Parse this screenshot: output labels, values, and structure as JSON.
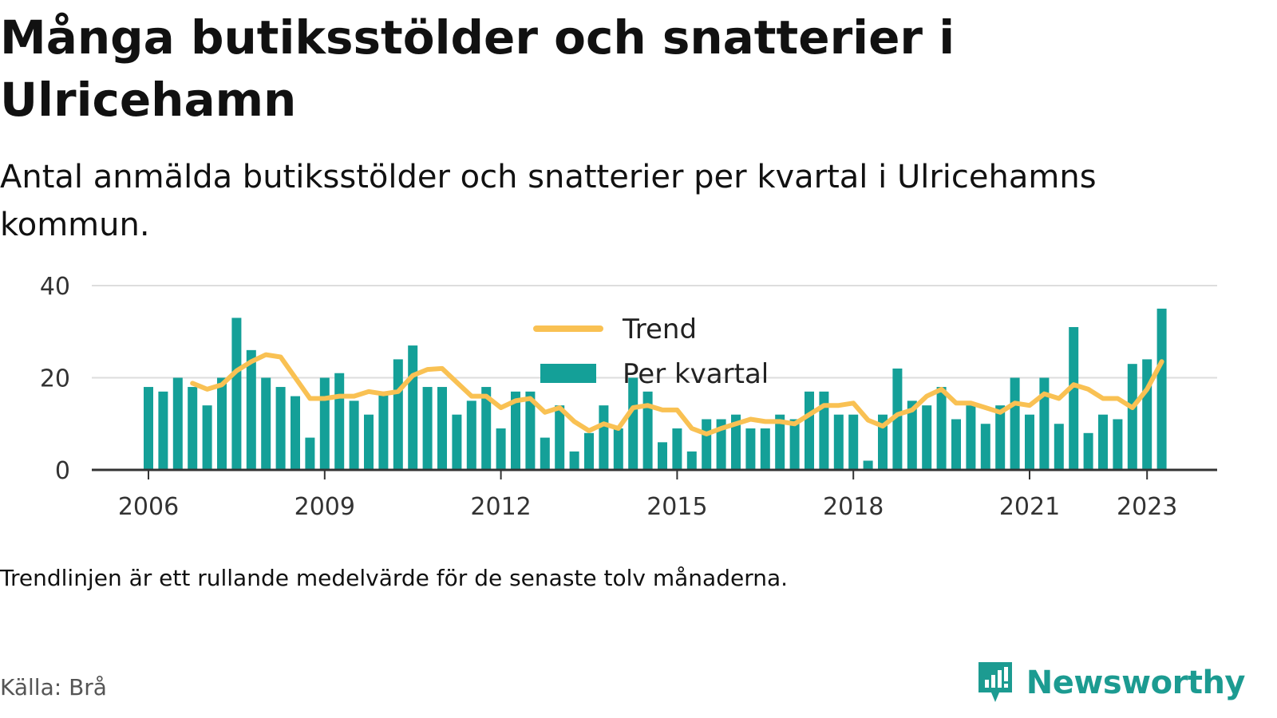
{
  "header": {
    "title": "Många butiksstölder och snatterier i Ulricehamn",
    "subtitle": "Antal anmälda butiksstölder och snatterier per kvartal i Ulricehamns kommun."
  },
  "footer": {
    "note": "Trendlinjen är ett rullande medelvärde för de senaste tolv månaderna.",
    "source": "Källa: Brå",
    "brand": "Newsworthy"
  },
  "colors": {
    "bars": "#14a098",
    "trend": "#f9c153",
    "grid": "#dddddd",
    "axis": "#333333",
    "brand": "#1c9b91"
  },
  "chart_data": {
    "type": "bar",
    "x_start": "2006 Q1",
    "ylim": [
      0,
      40
    ],
    "y_ticks": [
      0,
      20,
      40
    ],
    "x_ticks": [
      {
        "label": "2006",
        "index": 0
      },
      {
        "label": "2009",
        "index": 12
      },
      {
        "label": "2012",
        "index": 24
      },
      {
        "label": "2015",
        "index": 36
      },
      {
        "label": "2018",
        "index": 48
      },
      {
        "label": "2021",
        "index": 60
      },
      {
        "label": "2023",
        "index": 68
      }
    ],
    "legend": {
      "position": "top-center",
      "trend_label": "Trend",
      "bars_label": "Per kvartal"
    },
    "series": [
      {
        "name": "Per kvartal",
        "type": "bar",
        "values": [
          18,
          17,
          20,
          18,
          14,
          20,
          33,
          26,
          20,
          18,
          16,
          7,
          20,
          21,
          15,
          12,
          17,
          24,
          27,
          18,
          18,
          12,
          15,
          18,
          9,
          17,
          17,
          7,
          14,
          4,
          8,
          14,
          9,
          20,
          17,
          6,
          9,
          4,
          11,
          11,
          12,
          9,
          9,
          12,
          11,
          17,
          17,
          12,
          12,
          2,
          12,
          22,
          15,
          14,
          18,
          11,
          14,
          10,
          14,
          20,
          12,
          20,
          10,
          31,
          8,
          12,
          11,
          23,
          24,
          35
        ]
      },
      {
        "name": "Trend",
        "type": "line",
        "values": [
          null,
          null,
          null,
          18.8,
          17.5,
          18.5,
          21.5,
          23.5,
          25,
          24.5,
          20,
          15.5,
          15.5,
          16,
          16,
          17,
          16.5,
          17,
          20.5,
          21.8,
          22,
          19,
          16,
          16,
          13.5,
          15,
          15.5,
          12.5,
          13.5,
          10.5,
          8.5,
          10,
          9,
          13.5,
          14,
          13,
          13,
          9,
          7.8,
          9,
          10,
          11,
          10.5,
          10.5,
          10,
          12,
          14,
          14,
          14.5,
          10.8,
          9.5,
          12,
          13,
          16,
          17.5,
          14.5,
          14.5,
          13.5,
          12.5,
          14.5,
          14,
          16.5,
          15.5,
          18.5,
          17.5,
          15.5,
          15.5,
          13.5,
          17.5,
          23.5
        ]
      }
    ]
  }
}
